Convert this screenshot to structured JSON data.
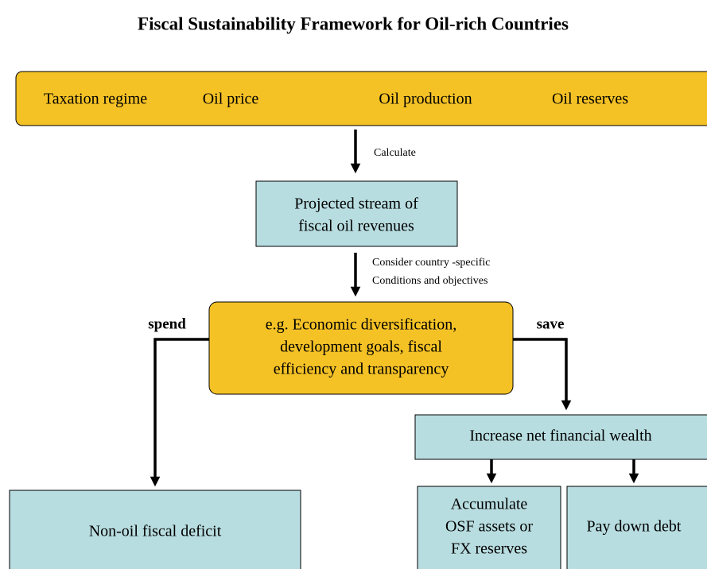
{
  "title": "Fiscal Sustainability Framework for Oil-rich Countries",
  "inputs": [
    "Taxation regime",
    "Oil price",
    "Oil production",
    "Oil reserves"
  ],
  "step1_label": "Calculate",
  "revenues": [
    "Projected stream of",
    "fiscal oil revenues"
  ],
  "step2_label": [
    "Consider country -specific",
    "Conditions and objectives"
  ],
  "conditions": [
    "e.g. Economic diversification,",
    "development goals, fiscal",
    "efficiency and transparency"
  ],
  "spend_label": "spend",
  "save_label": "save",
  "wealth": "Increase net financial wealth",
  "deficit": "Non-oil fiscal deficit",
  "accumulate": [
    "Accumulate",
    "OSF assets or",
    "FX reserves"
  ],
  "debt": "Pay down debt"
}
